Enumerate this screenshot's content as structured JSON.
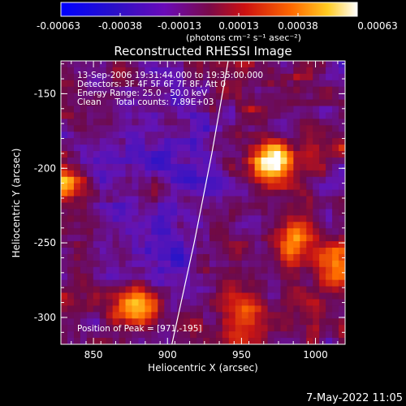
{
  "colorbar": {
    "ticks": [
      "-0.00063",
      "-0.00038",
      "-0.00013",
      "0.00013",
      "0.00038",
      "0.00063"
    ],
    "unit_label": "(photons cm⁻² s⁻¹ asec⁻²)"
  },
  "chart_data": {
    "type": "heatmap",
    "title": "Reconstructed RHESSI Image",
    "xlabel": "Heliocentric X (arcsec)",
    "ylabel": "Heliocentric Y (arcsec)",
    "xlim": [
      828,
      1020
    ],
    "ylim": [
      -318,
      -128
    ],
    "x_ticks": [
      850,
      900,
      950,
      1000
    ],
    "y_ticks": [
      -150,
      -200,
      -250,
      -300
    ],
    "clim": [
      -0.00063,
      0.00063
    ],
    "colormap": "blue-purple-red-yellow-white",
    "annotations": [
      "13-Sep-2006 19:31:44.000 to 19:35:00.000",
      "Detectors: 3F 4F 5F 6F 7F 8F, Att 0",
      "Energy Range: 25.0 - 50.0 keV",
      "Clean     Total counts: 7.89E+03"
    ],
    "peak_label": "Position of Peak = [971,-195]",
    "peak": {
      "x": 971,
      "y": -195
    },
    "bright_sources": [
      {
        "x": 971,
        "y": -195,
        "value": 0.00063
      },
      {
        "x": 880,
        "y": -291,
        "value": 0.0005
      },
      {
        "x": 1012,
        "y": -265,
        "value": 0.0004
      },
      {
        "x": 832,
        "y": -210,
        "value": 0.0004
      },
      {
        "x": 985,
        "y": -248,
        "value": 0.00032
      },
      {
        "x": 890,
        "y": -215,
        "value": 0.0003
      },
      {
        "x": 950,
        "y": -300,
        "value": 0.0003
      }
    ],
    "limb_curve": [
      [
        941,
        -128
      ],
      [
        930,
        -190
      ],
      [
        918,
        -250
      ],
      [
        903,
        -318
      ]
    ]
  },
  "footer": {
    "timestamp": "7-May-2022 11:05"
  }
}
